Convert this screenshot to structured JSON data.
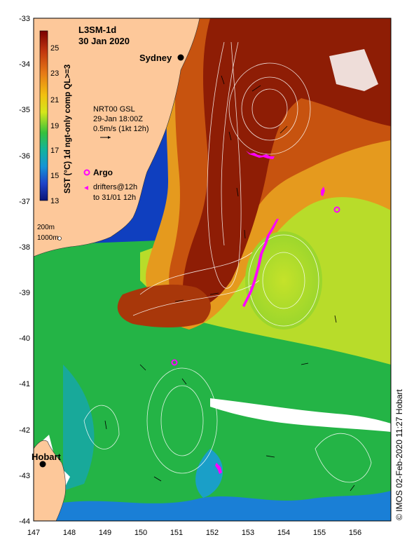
{
  "map": {
    "product": "L3SM-1d",
    "date": "30 Jan 2020",
    "places": {
      "sydney": "Sydney",
      "hobart": "Hobart"
    },
    "vector_key": {
      "line1": "NRT00 GSL",
      "line2": "29-Jan 18:00Z",
      "line3": "0.5m/s (1kt 12h)"
    },
    "legend": {
      "argo": "Argo",
      "drifters_line1": "drifters@12h",
      "drifters_line2": "to 31/01 12h"
    },
    "isobaths": {
      "shallow": "200m",
      "deep": "1000m"
    },
    "colorbar": {
      "title": "SST (°C) 1d ngt-only comp QL>=3",
      "ticks": [
        "25",
        "23",
        "21",
        "19",
        "17",
        "15",
        "13"
      ],
      "range": [
        13,
        26
      ]
    },
    "credit": "© IMOS 02-Feb-2020 11:27 Hobart",
    "lon_ticks": [
      "147",
      "148",
      "149",
      "150",
      "151",
      "152",
      "153",
      "154",
      "155",
      "156"
    ],
    "lat_ticks": [
      "-33",
      "-34",
      "-35",
      "-36",
      "-37",
      "-38",
      "-39",
      "-40",
      "-41",
      "-42",
      "-43",
      "-44"
    ],
    "colors": {
      "land": "#fdc89a",
      "warm": "#8b1c05",
      "cool": "#1fae43",
      "cold": "#0d2fb8",
      "argo": "#ff00ff"
    }
  }
}
